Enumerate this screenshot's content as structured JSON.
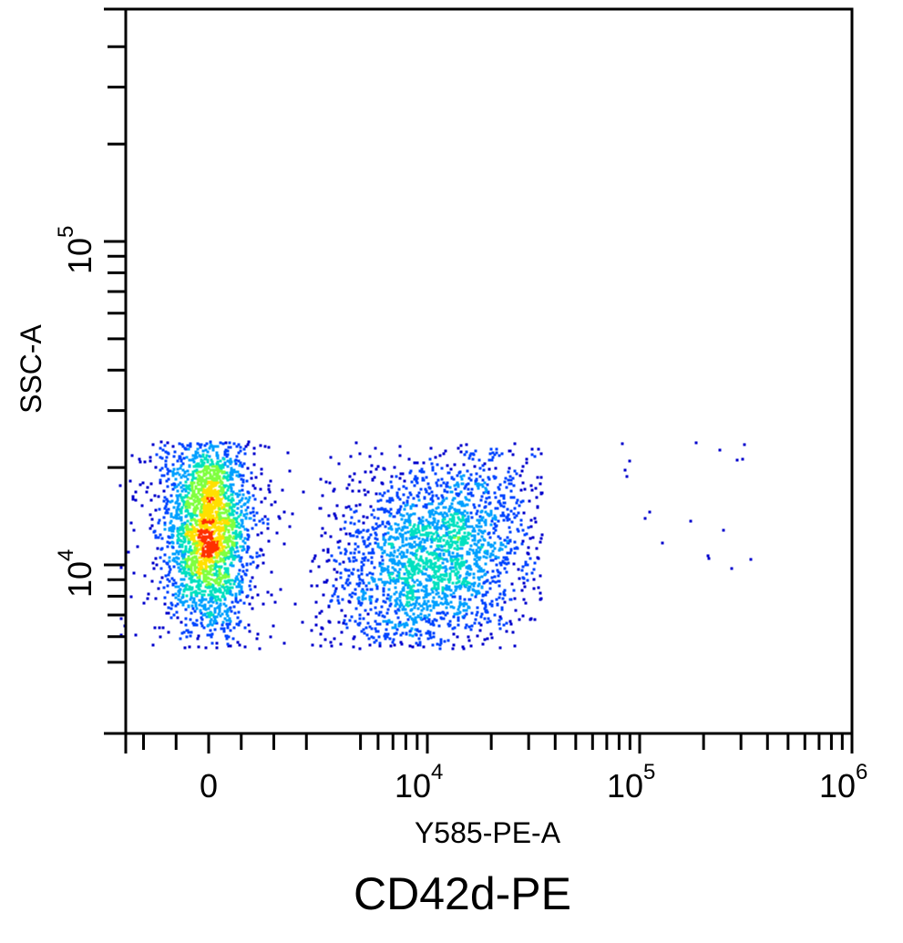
{
  "caption": "CD42d-PE",
  "chart_data": {
    "type": "scatter",
    "subtype": "flow-cytometry density dot plot",
    "title": "",
    "xlabel": "Y585-PE-A",
    "ylabel": "SSC-A",
    "x_scale": "biexponential (linear near 0, log above)",
    "y_scale": "log",
    "xlim": [
      -4000,
      1000000
    ],
    "ylim": [
      4500,
      400000
    ],
    "x_ticks": [
      {
        "label": "0",
        "value": 0
      },
      {
        "label": "10",
        "sup": "4",
        "value": 10000
      },
      {
        "label": "10",
        "sup": "5",
        "value": 100000
      },
      {
        "label": "10",
        "sup": "6",
        "value": 1000000
      }
    ],
    "y_ticks": [
      {
        "label": "10",
        "sup": "4",
        "value": 10000
      },
      {
        "label": "10",
        "sup": "5",
        "value": 100000
      }
    ],
    "grid": false,
    "legend": "none",
    "colormap": [
      "#0000cc",
      "#0044ff",
      "#00a0ff",
      "#00e0c0",
      "#80ff40",
      "#ffe000",
      "#ff3000"
    ],
    "populations": [
      {
        "x_center": 0,
        "y_center": 13000,
        "x_range": [
          -2500,
          2500
        ],
        "y_range": [
          5500,
          24000
        ],
        "events": 2600,
        "peak_density": "high (red)"
      },
      {
        "x_center": 10500,
        "y_center": 10500,
        "x_range": [
          3500,
          30000
        ],
        "y_range": [
          5500,
          24000
        ],
        "events": 2600,
        "peak_density": "medium (green)"
      },
      {
        "x_center": 200000,
        "y_center": 13000,
        "x_range": [
          75000,
          380000
        ],
        "y_range": [
          9000,
          24000
        ],
        "events": 18,
        "peak_density": "low (blue)"
      }
    ]
  }
}
